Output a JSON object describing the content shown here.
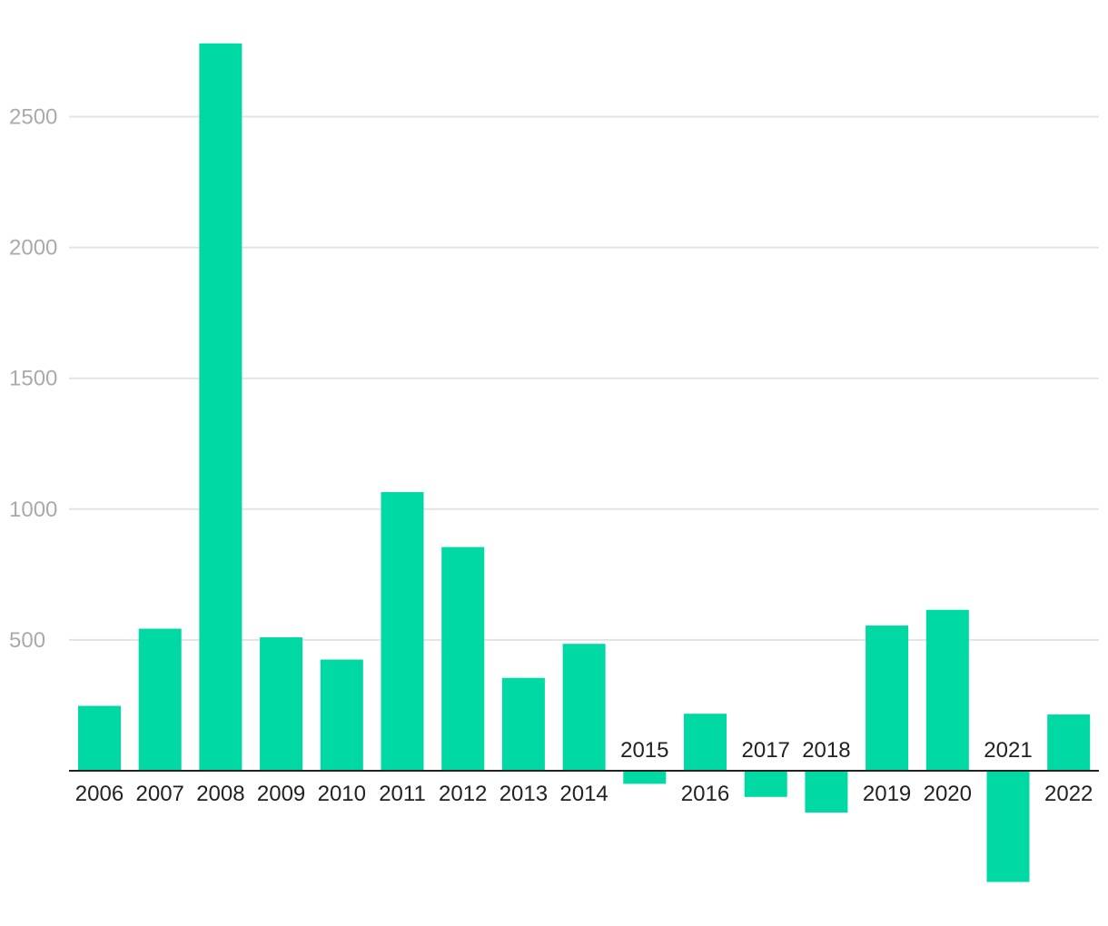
{
  "chart_data": {
    "type": "bar",
    "title": "",
    "xlabel": "",
    "ylabel": "",
    "categories": [
      "2006",
      "2007",
      "2008",
      "2009",
      "2010",
      "2011",
      "2012",
      "2013",
      "2014",
      "2015",
      "2016",
      "2017",
      "2018",
      "2019",
      "2020",
      "2021",
      "2022"
    ],
    "values": [
      248,
      543,
      2780,
      510,
      425,
      1065,
      855,
      355,
      485,
      -50,
      218,
      -100,
      -160,
      555,
      615,
      -425,
      215
    ],
    "ylim": [
      -440,
      2800
    ],
    "yticks": [
      {
        "value": 500,
        "label": "500"
      },
      {
        "value": 1000,
        "label": "1000"
      },
      {
        "value": 1500,
        "label": "1500"
      },
      {
        "value": 2000,
        "label": "2000"
      },
      {
        "value": 2500,
        "label": "2500"
      }
    ],
    "grid": true,
    "legend": "none",
    "colors": {
      "bar": "#00d9a3",
      "gridline": "#e3e3e3",
      "baseline": "#222222",
      "ytick_text": "#aaaaaa",
      "xtick_text": "#222222"
    }
  }
}
